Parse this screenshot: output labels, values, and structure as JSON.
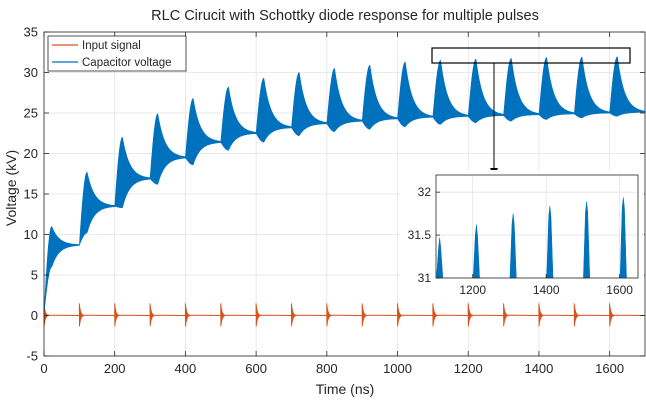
{
  "chart_data": {
    "type": "line",
    "title": "RLC Cirucit with Schottky  diode response for multiple pulses",
    "xlabel": "Time (ns)",
    "ylabel": "Voltage (kV)",
    "xlim": [
      0,
      1700
    ],
    "ylim": [
      -5,
      35
    ],
    "xticks": [
      0,
      200,
      400,
      600,
      800,
      1000,
      1200,
      1400,
      1600
    ],
    "yticks": [
      -5,
      0,
      5,
      10,
      15,
      20,
      25,
      30,
      35
    ],
    "grid": true,
    "legend_position": "top-left",
    "pulse_times": [
      0,
      100,
      200,
      300,
      400,
      500,
      600,
      700,
      800,
      900,
      1000,
      1100,
      1200,
      1300,
      1400,
      1500,
      1600
    ],
    "series": [
      {
        "name": "Input signal",
        "color": "#D95319",
        "baseline": 0,
        "pulse_amplitude": [
          1.5,
          1.5,
          1.5,
          1.5,
          1.5,
          1.5,
          1.5,
          1.5,
          1.5,
          1.5,
          1.5,
          1.5,
          1.5,
          1.5,
          1.5,
          1.5,
          1.5
        ]
      },
      {
        "name": "Capacitor voltage",
        "color": "#0072BD",
        "envelope_peak": [
          11.0,
          17.7,
          22.0,
          24.9,
          26.8,
          28.2,
          29.3,
          30.0,
          30.5,
          30.9,
          31.3,
          31.5,
          31.65,
          31.75,
          31.85,
          31.9,
          31.95
        ],
        "envelope_trough": [
          6.0,
          10.2,
          13.3,
          16.2,
          18.6,
          20.4,
          21.4,
          22.2,
          22.7,
          23.0,
          23.3,
          23.6,
          23.8,
          24.0,
          24.2,
          24.4,
          24.6
        ],
        "settle_value": [
          8.7,
          13.5,
          16.9,
          19.5,
          21.4,
          22.5,
          23.2,
          23.7,
          24.0,
          24.3,
          24.5,
          24.6,
          24.7,
          24.8,
          24.9,
          25.0,
          25.1
        ]
      }
    ],
    "inset": {
      "xlim": [
        1100,
        1650
      ],
      "ylim": [
        31,
        32.2
      ],
      "xticks": [
        1200,
        1400,
        1600
      ],
      "yticks": [
        31,
        31.5,
        32
      ],
      "peaks": [
        {
          "x": 1110,
          "y": 31.47
        },
        {
          "x": 1210,
          "y": 31.62
        },
        {
          "x": 1310,
          "y": 31.75
        },
        {
          "x": 1410,
          "y": 31.84
        },
        {
          "x": 1510,
          "y": 31.89
        },
        {
          "x": 1610,
          "y": 31.94
        }
      ]
    }
  }
}
